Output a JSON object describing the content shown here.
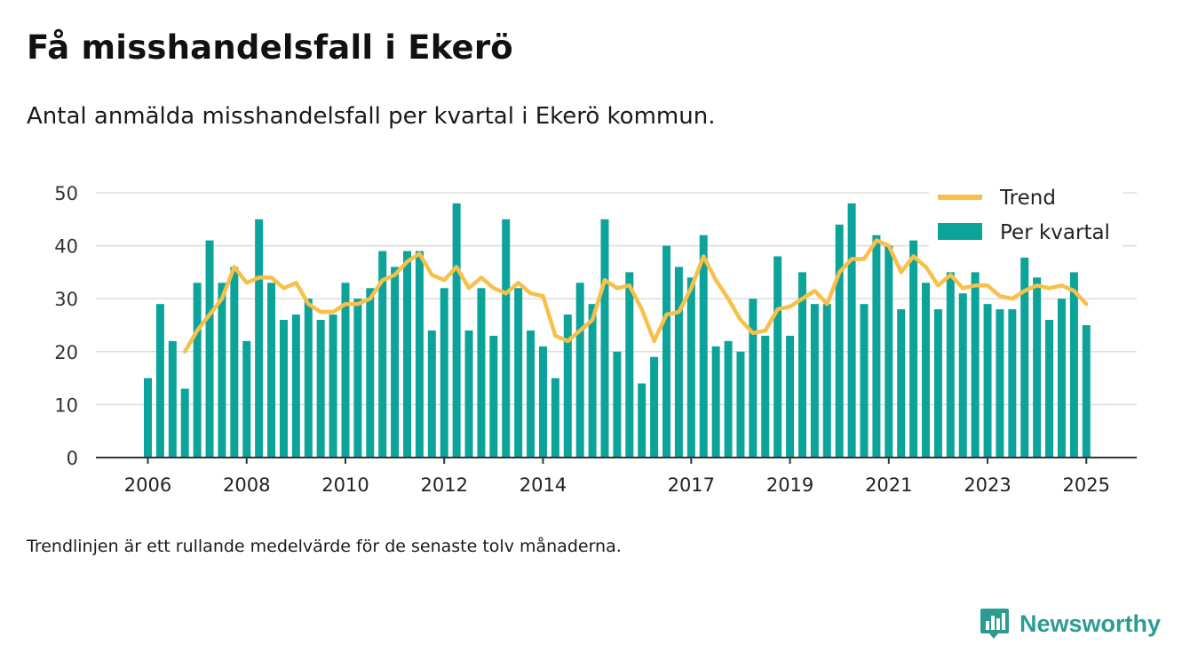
{
  "header": {
    "title": "Få misshandelsfall i Ekerö",
    "subtitle": "Antal anmälda misshandelsfall per kvartal i Ekerö kommun."
  },
  "footer": {
    "note": "Trendlinjen är ett rullande medelvärde för de senaste tolv månaderna.",
    "brand": "Newsworthy",
    "brand_icon": "newsworthy-bar-chart-icon"
  },
  "colors": {
    "bar": "#0ba39a",
    "trend": "#f7c04a",
    "grid": "#dddddd",
    "axis": "#333333",
    "brand": "#2c9c92"
  },
  "chart_data": {
    "type": "bar",
    "xlabel": "",
    "ylabel": "",
    "ylim": [
      0,
      50
    ],
    "y_ticks": [
      "0",
      "10",
      "20",
      "30",
      "40",
      "50"
    ],
    "x_ticks": [
      "2006",
      "2008",
      "2010",
      "2012",
      "2014",
      "2017",
      "2019",
      "2021",
      "2023",
      "2025"
    ],
    "grid": true,
    "legend_position": "top-right",
    "start_period": "2006 Q1",
    "series": [
      {
        "name": "Per kvartal",
        "type": "bar",
        "values": [
          15,
          29,
          22,
          13,
          33,
          41,
          33,
          36,
          22,
          45,
          33,
          26,
          27,
          30,
          26,
          27,
          33,
          30,
          32,
          39,
          36,
          39,
          39,
          24,
          32,
          48,
          24,
          32,
          23,
          45,
          32,
          24,
          21,
          15,
          27,
          33,
          29,
          45,
          20,
          35,
          14,
          19,
          40,
          36,
          34,
          42,
          21,
          22,
          20,
          30,
          23,
          38,
          23,
          35,
          29,
          29,
          44,
          48,
          29,
          42,
          40,
          28,
          41,
          33,
          28,
          35,
          31,
          35,
          29,
          28,
          28,
          38,
          34,
          26,
          30,
          35,
          25
        ]
      },
      {
        "name": "Trend",
        "type": "line",
        "values": [
          null,
          null,
          null,
          20,
          24,
          27,
          30,
          36,
          33,
          34,
          34,
          32,
          33,
          29,
          27.5,
          27.5,
          29,
          29,
          30,
          33.5,
          34.5,
          37,
          38.5,
          34.5,
          33.5,
          36,
          32,
          34,
          32,
          31,
          33,
          31,
          30.5,
          23,
          22,
          24,
          26,
          33.5,
          32,
          32.5,
          28,
          22,
          27,
          27.5,
          32,
          38,
          33.5,
          30,
          26,
          23.5,
          24,
          28,
          28.5,
          30,
          31.5,
          29,
          35,
          37.5,
          37.5,
          41,
          40,
          35,
          38,
          36,
          32.5,
          34.5,
          32,
          32.5,
          32.5,
          30.5,
          30,
          31.5,
          32.5,
          32,
          32.5,
          31.5,
          29
        ]
      }
    ]
  }
}
